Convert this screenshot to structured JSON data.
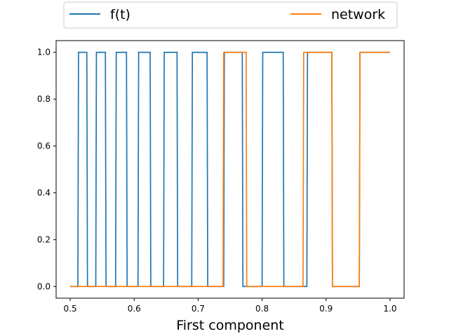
{
  "chart_data": {
    "type": "line",
    "title": "",
    "xlabel": "First component",
    "ylabel": "",
    "xlim": [
      0.478,
      1.022
    ],
    "ylim": [
      -0.05,
      1.05
    ],
    "xticks": [
      0.5,
      0.6,
      0.7,
      0.8,
      0.9,
      1.0
    ],
    "xtick_labels": [
      "0.5",
      "0.6",
      "0.7",
      "0.8",
      "0.9",
      "1.0"
    ],
    "yticks": [
      0.0,
      0.2,
      0.4,
      0.6,
      0.8,
      1.0
    ],
    "ytick_labels": [
      "0.0",
      "0.2",
      "0.4",
      "0.6",
      "0.8",
      "1.0"
    ],
    "grid": false,
    "legend_position": "top, outside plot, two columns",
    "series": [
      {
        "name": "f(t)",
        "color": "#1f77b4",
        "x": [
          0.5,
          0.512,
          0.513,
          0.526,
          0.527,
          0.54,
          0.541,
          0.555,
          0.556,
          0.571,
          0.572,
          0.588,
          0.589,
          0.606,
          0.607,
          0.625,
          0.626,
          0.646,
          0.647,
          0.667,
          0.668,
          0.69,
          0.691,
          0.714,
          0.715,
          0.74,
          0.741,
          0.769,
          0.77,
          0.8,
          0.801,
          0.833,
          0.834,
          0.87,
          0.871,
          0.909,
          0.91,
          0.952,
          0.953,
          1.0
        ],
        "y": [
          0,
          0,
          1,
          1,
          0,
          0,
          1,
          1,
          0,
          0,
          1,
          1,
          0,
          0,
          1,
          1,
          0,
          0,
          1,
          1,
          0,
          0,
          1,
          1,
          0,
          0,
          1,
          1,
          0,
          0,
          1,
          1,
          0,
          0,
          1,
          1,
          0,
          0,
          1,
          1
        ]
      },
      {
        "name": "network",
        "color": "#ff7f0e",
        "x": [
          0.5,
          0.739,
          0.74,
          0.775,
          0.776,
          0.864,
          0.865,
          0.909,
          0.91,
          0.952,
          0.953,
          1.0
        ],
        "y": [
          0,
          0,
          1,
          1,
          0,
          0,
          1,
          1,
          0,
          0,
          1,
          1
        ]
      }
    ]
  }
}
